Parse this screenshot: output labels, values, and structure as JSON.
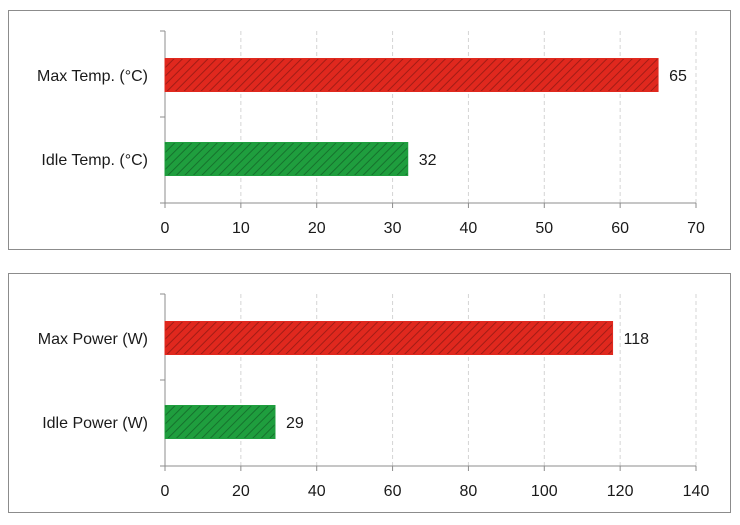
{
  "chart_data": [
    {
      "type": "bar",
      "orientation": "horizontal",
      "categories": [
        "Max Temp. (°C)",
        "Idle Temp. (°C)"
      ],
      "values": [
        65,
        32
      ],
      "colors": [
        "#e0281e",
        "#1f9e3e"
      ],
      "xlim": [
        0,
        70
      ],
      "xticks": [
        0,
        10,
        20,
        30,
        40,
        50,
        60,
        70
      ],
      "grid": "vertical-dashed",
      "data_labels": true,
      "title": "",
      "xlabel": "",
      "ylabel": ""
    },
    {
      "type": "bar",
      "orientation": "horizontal",
      "categories": [
        "Max Power (W)",
        "Idle Power (W)"
      ],
      "values": [
        118,
        29
      ],
      "colors": [
        "#e0281e",
        "#1f9e3e"
      ],
      "xlim": [
        0,
        140
      ],
      "xticks": [
        0,
        20,
        40,
        60,
        80,
        100,
        120,
        140
      ],
      "grid": "vertical-dashed",
      "data_labels": true,
      "title": "",
      "xlabel": "",
      "ylabel": ""
    }
  ]
}
